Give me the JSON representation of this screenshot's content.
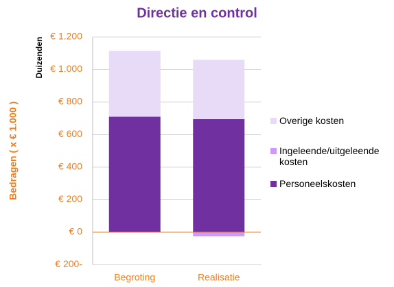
{
  "chart_data": {
    "type": "stacked-bar",
    "title": "Directie en control",
    "y_label": "Bedragen  ( x € 1.000 )",
    "unit_label": "Duizenden",
    "categories": [
      "Begroting",
      "Realisatie"
    ],
    "series": [
      {
        "name": "Personeelskosten",
        "color": "#7030a0",
        "values": [
          710,
          695
        ]
      },
      {
        "name": "Ingeleende/uitgeleende kosten",
        "color": "#cc99ff",
        "values": [
          0,
          -25
        ]
      },
      {
        "name": "Overige kosten",
        "color": "#e8dbf7",
        "values": [
          405,
          365
        ]
      }
    ],
    "ylim": [
      -200,
      1200
    ],
    "yticks": [
      {
        "value": -200,
        "label": "€ 200-"
      },
      {
        "value": 0,
        "label": "€ 0"
      },
      {
        "value": 200,
        "label": "€ 200"
      },
      {
        "value": 400,
        "label": "€ 400"
      },
      {
        "value": 600,
        "label": "€ 600"
      },
      {
        "value": 800,
        "label": "€ 800"
      },
      {
        "value": 1000,
        "label": "€ 1.000"
      },
      {
        "value": 1200,
        "label": "€ 1.200"
      }
    ],
    "grid": true,
    "legend": "right"
  }
}
